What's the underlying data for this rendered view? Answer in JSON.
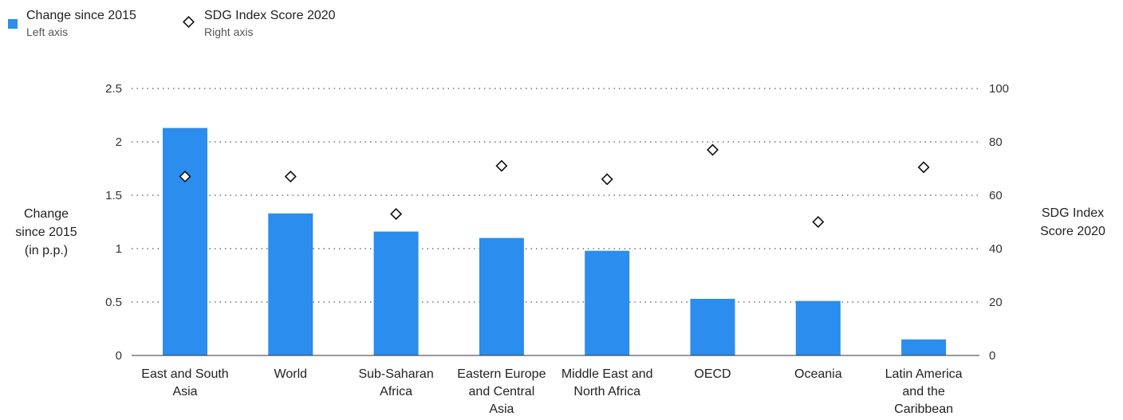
{
  "chart_data": {
    "type": "bar",
    "categories": [
      [
        "East and South",
        "Asia"
      ],
      [
        "World"
      ],
      [
        "Sub-Saharan",
        "Africa"
      ],
      [
        "Eastern Europe",
        "and Central",
        "Asia"
      ],
      [
        "Middle East and",
        "North Africa"
      ],
      [
        "OECD"
      ],
      [
        "Oceania"
      ],
      [
        "Latin America",
        "and the",
        "Caribbean"
      ]
    ],
    "series": [
      {
        "name": "Change since 2015",
        "axis": "left",
        "mark": "bar",
        "color": "#2b8ded",
        "values": [
          2.13,
          1.33,
          1.16,
          1.1,
          0.98,
          0.53,
          0.51,
          0.15
        ]
      },
      {
        "name": "SDG Index Score 2020",
        "axis": "right",
        "mark": "diamond",
        "color": "#111111",
        "values": [
          67,
          67,
          53,
          71,
          66,
          77,
          50,
          70.5
        ]
      }
    ],
    "left_axis": {
      "title": [
        "Change",
        "since 2015",
        "(in p.p.)"
      ],
      "ticks": [
        "0",
        "0.5",
        "1",
        "1.5",
        "2",
        "2.5"
      ],
      "ylim": [
        0,
        2.5
      ]
    },
    "right_axis": {
      "title": [
        "SDG Index",
        "Score 2020"
      ],
      "ticks": [
        "0",
        "20",
        "40",
        "60",
        "80",
        "100"
      ],
      "ylim": [
        0,
        100
      ]
    },
    "legend": {
      "placement": "top-left",
      "items": [
        {
          "label": "Change since 2015",
          "sub": "Left axis",
          "mark": "square"
        },
        {
          "label": "SDG Index Score 2020",
          "sub": "Right axis",
          "mark": "diamond"
        }
      ]
    },
    "grid": "dotted-horizontal"
  }
}
